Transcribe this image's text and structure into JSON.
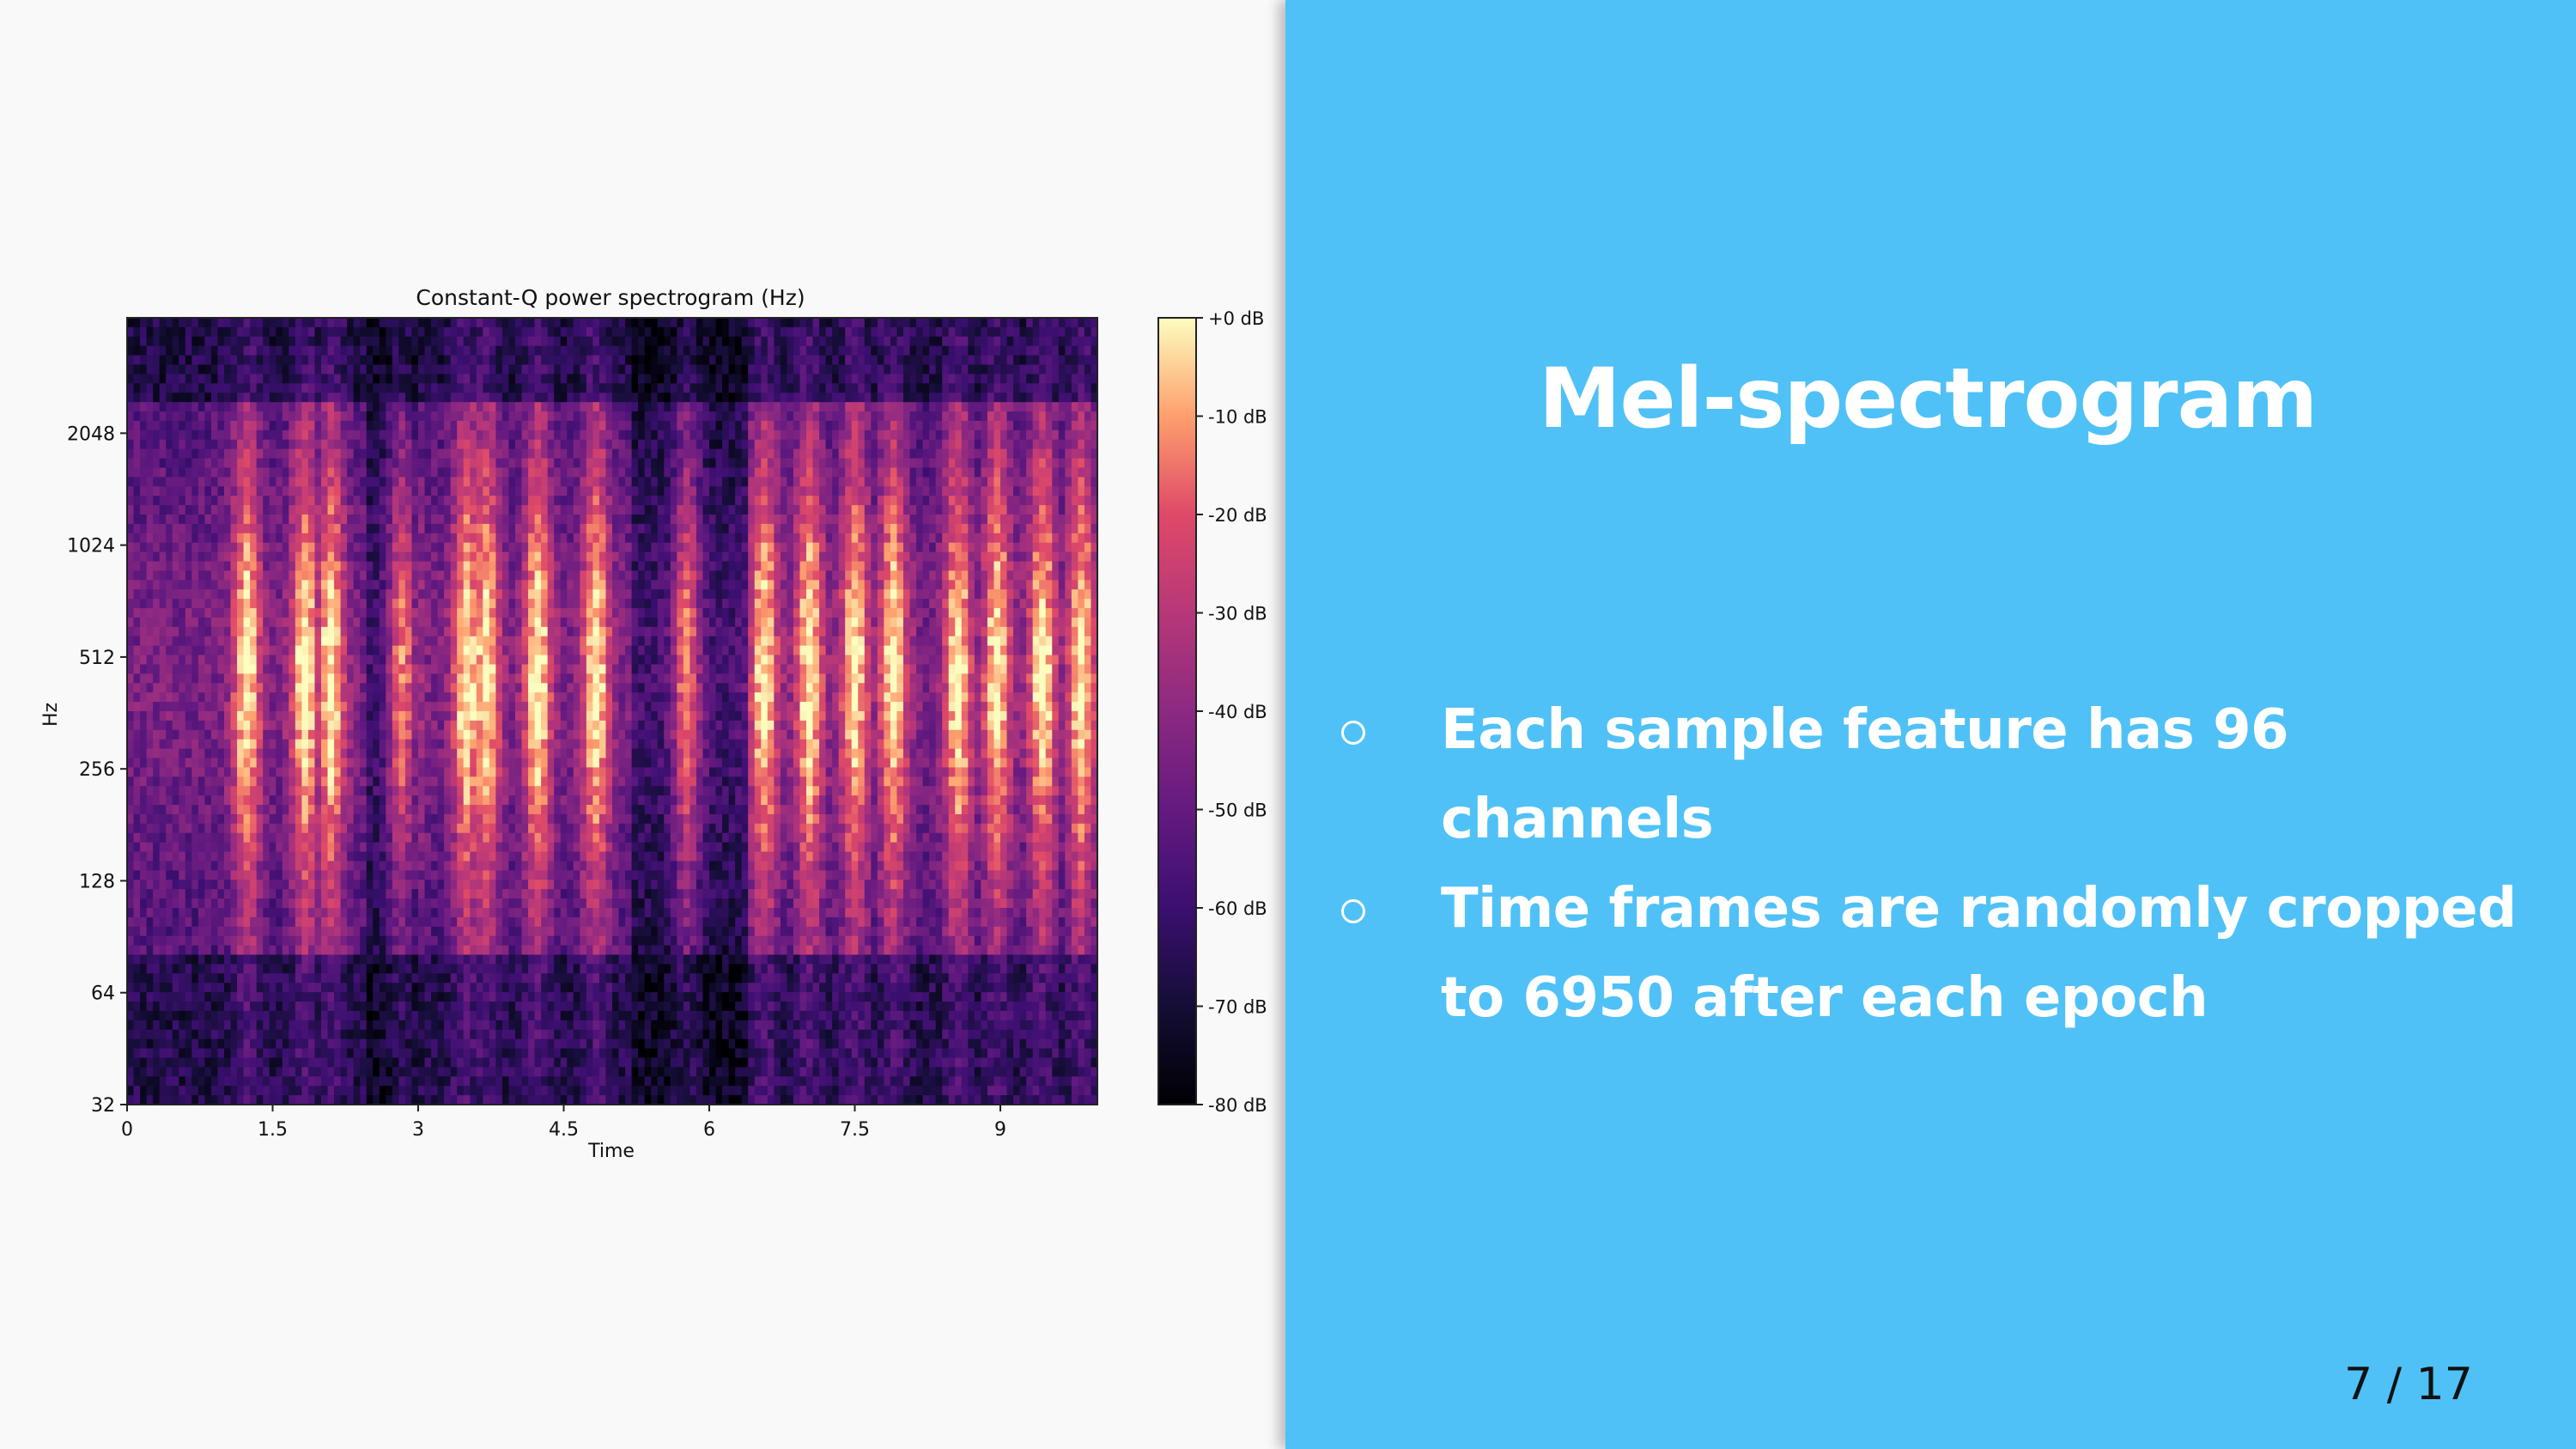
{
  "slide": {
    "title": "Mel-spectrogram",
    "bullets": [
      "Each sample feature has 96 channels",
      "Time frames are randomly cropped to 6950 after each epoch"
    ],
    "page_indicator": "7 / 17"
  },
  "colors": {
    "right_panel_bg": "#4fc1f7",
    "left_panel_bg": "#f9f9f9",
    "text_on_panel": "#ffffff",
    "colormap": "magma"
  },
  "chart_data": {
    "type": "heatmap",
    "title": "Constant-Q power spectrogram (Hz)",
    "xlabel": "Time",
    "ylabel": "Hz",
    "x_ticks": [
      "0",
      "1.5",
      "3",
      "4.5",
      "6",
      "7.5",
      "9"
    ],
    "x_tick_values": [
      0,
      1.5,
      3,
      4.5,
      6,
      7.5,
      9
    ],
    "xlim": [
      0,
      10
    ],
    "y_scale": "log2",
    "y_ticks": [
      "32",
      "64",
      "128",
      "256",
      "512",
      "1024",
      "2048"
    ],
    "y_tick_values": [
      32,
      64,
      128,
      256,
      512,
      1024,
      2048
    ],
    "ylim": [
      32,
      4186
    ],
    "colorbar": {
      "label_ticks": [
        "+0 dB",
        "-10 dB",
        "-20 dB",
        "-30 dB",
        "-40 dB",
        "-50 dB",
        "-60 dB",
        "-70 dB",
        "-80 dB"
      ],
      "range_db": [
        -80,
        0
      ]
    }
  }
}
